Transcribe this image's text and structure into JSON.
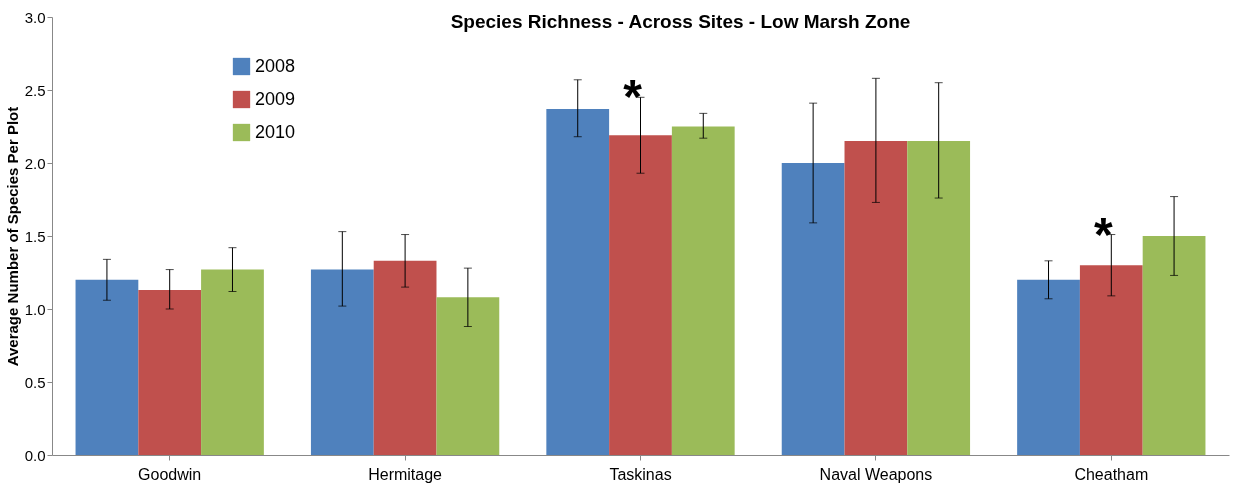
{
  "chart_data": {
    "type": "bar",
    "title": "Species Richness - Across Sites - Low Marsh Zone",
    "ylabel": "Average Number of Species Per Plot",
    "categories": [
      "Goodwin",
      "Hermitage",
      "Taskinas",
      "Naval Weapons",
      "Cheatham"
    ],
    "series": [
      {
        "name": "2008",
        "color": "#4f81bd",
        "values": [
          1.2,
          1.27,
          2.37,
          2.0,
          1.2
        ],
        "errors": [
          [
            1.06,
            1.34
          ],
          [
            1.02,
            1.53
          ],
          [
            2.18,
            2.57
          ],
          [
            1.59,
            2.41
          ],
          [
            1.07,
            1.33
          ]
        ]
      },
      {
        "name": "2009",
        "color": "#c0504d",
        "values": [
          1.13,
          1.33,
          2.19,
          2.15,
          1.3
        ],
        "errors": [
          [
            1.0,
            1.27
          ],
          [
            1.15,
            1.51
          ],
          [
            1.93,
            2.45
          ],
          [
            1.73,
            2.58
          ],
          [
            1.09,
            1.51
          ]
        ]
      },
      {
        "name": "2010",
        "color": "#9bbb59",
        "values": [
          1.27,
          1.08,
          2.25,
          2.15,
          1.5
        ],
        "errors": [
          [
            1.12,
            1.42
          ],
          [
            0.88,
            1.28
          ],
          [
            2.17,
            2.34
          ],
          [
            1.76,
            2.55
          ],
          [
            1.23,
            1.77
          ]
        ]
      }
    ],
    "ylim": [
      0,
      3
    ],
    "yticks": [
      {
        "value": 0,
        "label": "0.0"
      },
      {
        "value": 0.5,
        "label": "0.5"
      },
      {
        "value": 1,
        "label": "1.0"
      },
      {
        "value": 1.5,
        "label": "1.5"
      },
      {
        "value": 2,
        "label": "2.0"
      },
      {
        "value": 2.5,
        "label": "2.5"
      },
      {
        "value": 3,
        "label": "3.0"
      }
    ],
    "annotations": [
      {
        "text": "*",
        "x": "Taskinas",
        "y": 2.45
      },
      {
        "text": "*",
        "x": "Cheatham",
        "y": 1.51
      }
    ],
    "legend": "top left",
    "grid": false
  }
}
